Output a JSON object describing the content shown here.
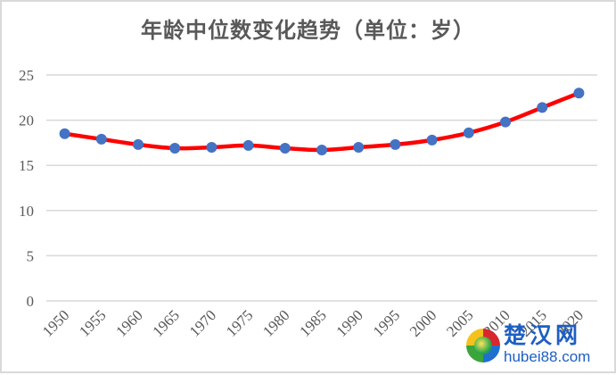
{
  "chart_data": {
    "type": "line",
    "title": "年龄中位数变化趋势（单位：岁）",
    "xlabel": "",
    "ylabel": "",
    "categories": [
      "1950",
      "1955",
      "1960",
      "1965",
      "1970",
      "1975",
      "1980",
      "1985",
      "1990",
      "1995",
      "2000",
      "2005",
      "2010",
      "2015",
      "2020"
    ],
    "series": [
      {
        "name": "年龄中位数",
        "values": [
          18.5,
          17.9,
          17.3,
          16.9,
          17.0,
          17.2,
          16.9,
          16.7,
          17.0,
          17.3,
          17.8,
          18.6,
          19.8,
          21.4,
          23.0
        ],
        "line_color": "#ff0000",
        "marker_color": "#4472c4",
        "smooth": true
      }
    ],
    "ylim": [
      0,
      25
    ],
    "yticks": [
      "0",
      "5",
      "10",
      "15",
      "20",
      "25"
    ],
    "grid": true,
    "legend": "none",
    "x_tick_rotation": -45
  },
  "watermark": {
    "name_cn": "楚汉网",
    "domain": "hubei88.com"
  }
}
